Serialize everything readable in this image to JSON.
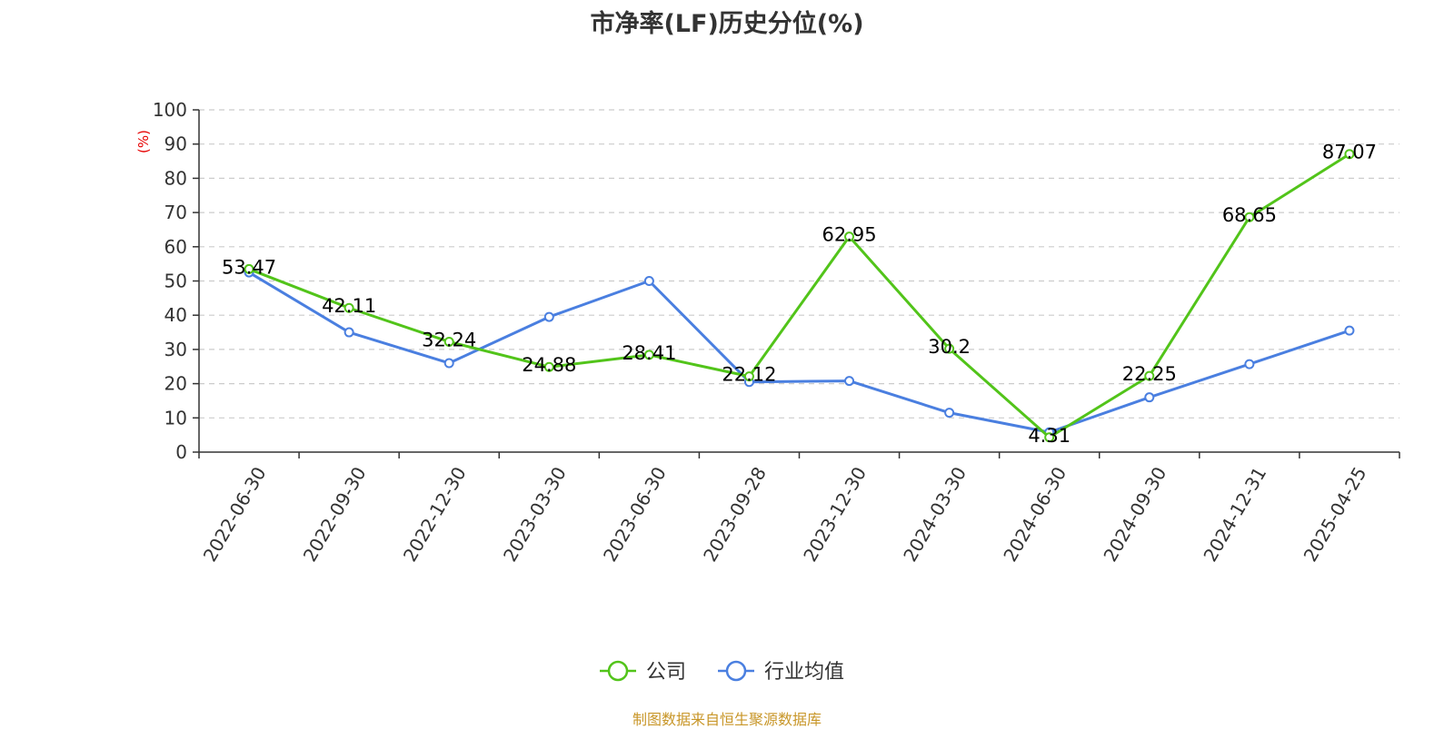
{
  "chart_data": {
    "type": "line",
    "title": "市净率(LF)历史分位(%)",
    "y_unit": "(%)",
    "categories": [
      "2022-06-30",
      "2022-09-30",
      "2022-12-30",
      "2023-03-30",
      "2023-06-30",
      "2023-09-28",
      "2023-12-30",
      "2024-03-30",
      "2024-06-30",
      "2024-09-30",
      "2024-12-31",
      "2025-04-25"
    ],
    "ylim": [
      0,
      100
    ],
    "yticks": [
      0,
      10,
      20,
      30,
      40,
      50,
      60,
      70,
      80,
      90,
      100
    ],
    "grid": true,
    "legend_position": "bottom",
    "series": [
      {
        "name": "公司",
        "color": "#52c41a",
        "values": [
          53.47,
          42.11,
          32.24,
          24.88,
          28.41,
          22.12,
          62.95,
          30.2,
          4.31,
          22.25,
          68.65,
          87.07
        ],
        "labels": [
          "53.47",
          "42.11",
          "32.24",
          "24.88",
          "28.41",
          "22.12",
          "62.95",
          "30.2",
          "4.31",
          "22.25",
          "68.65",
          "87.07"
        ]
      },
      {
        "name": "行业均值",
        "color": "#4a7fe0",
        "values": [
          52.5,
          35,
          26,
          39.5,
          50,
          20.5,
          20.8,
          11.5,
          5.8,
          16,
          25.7,
          35.5
        ]
      }
    ]
  },
  "source": "制图数据来自恒生聚源数据库"
}
